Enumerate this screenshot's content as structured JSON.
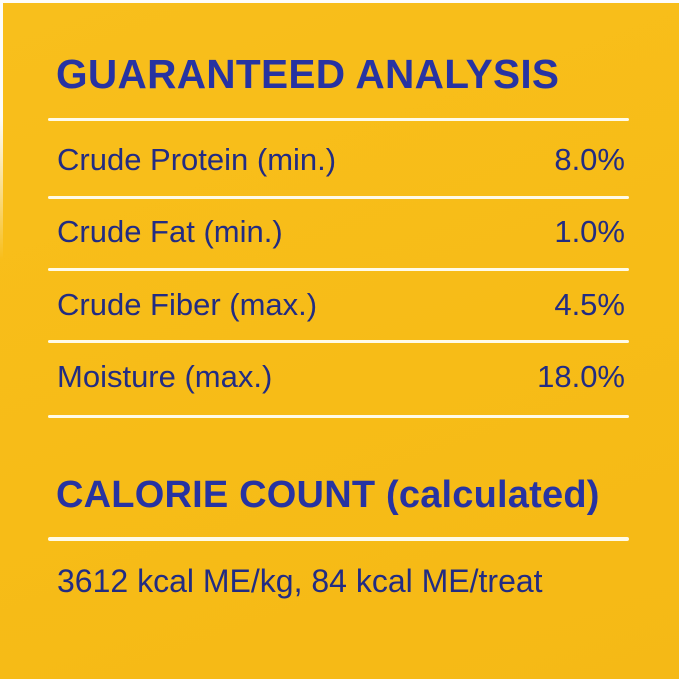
{
  "panel": {
    "title": "GUARANTEED ANALYSIS",
    "analysis_rows": [
      {
        "label": "Crude Protein (min.)",
        "value": "8.0%"
      },
      {
        "label": "Crude Fat (min.)",
        "value": "1.0%"
      },
      {
        "label": "Crude Fiber (max.)",
        "value": "4.5%"
      },
      {
        "label": "Moisture (max.)",
        "value": "18.0%"
      }
    ],
    "calorie": {
      "heading": "CALORIE COUNT (calculated)",
      "statement": "3612 kcal ME/kg, 84 kcal ME/treat"
    },
    "colors": {
      "background_yellow": "#f7bc17",
      "heading_blue": "#2733a2",
      "body_navy": "#222c83",
      "divider_cream": "#fffbe8"
    }
  }
}
